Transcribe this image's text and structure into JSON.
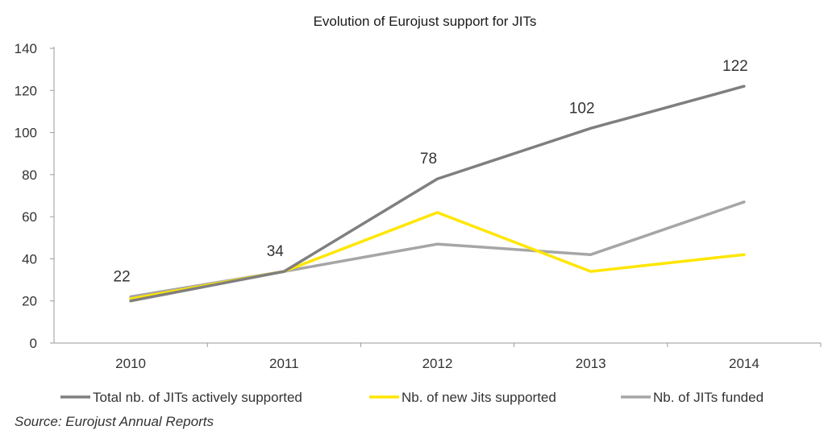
{
  "chart_data": {
    "type": "line",
    "title": "Evolution of Eurojust support for JITs",
    "x": [
      "2010",
      "2011",
      "2012",
      "2013",
      "2014"
    ],
    "ylim": [
      0,
      140
    ],
    "yticks": [
      0,
      20,
      40,
      60,
      80,
      100,
      120,
      140
    ],
    "series": [
      {
        "name": "Total nb. of JITs actively supported",
        "values": [
          20,
          34,
          78,
          102,
          122
        ],
        "color": "#7f7f7f"
      },
      {
        "name": "Nb. of new Jits supported",
        "values": [
          21,
          34,
          62,
          34,
          42
        ],
        "color": "#ffe600"
      },
      {
        "name": "Nb. of JITs funded",
        "values": [
          22,
          34,
          47,
          42,
          67
        ],
        "color": "#a6a6a6"
      }
    ],
    "data_labels": [
      {
        "x": "2010",
        "value": 22,
        "text": "22"
      },
      {
        "x": "2011",
        "value": 34,
        "text": "34"
      },
      {
        "x": "2012",
        "value": 78,
        "text": "78"
      },
      {
        "x": "2013",
        "value": 102,
        "text": "102"
      },
      {
        "x": "2014",
        "value": 122,
        "text": "122"
      }
    ],
    "legend_position": "bottom",
    "grid": false
  },
  "source": "Source: Eurojust Annual Reports"
}
